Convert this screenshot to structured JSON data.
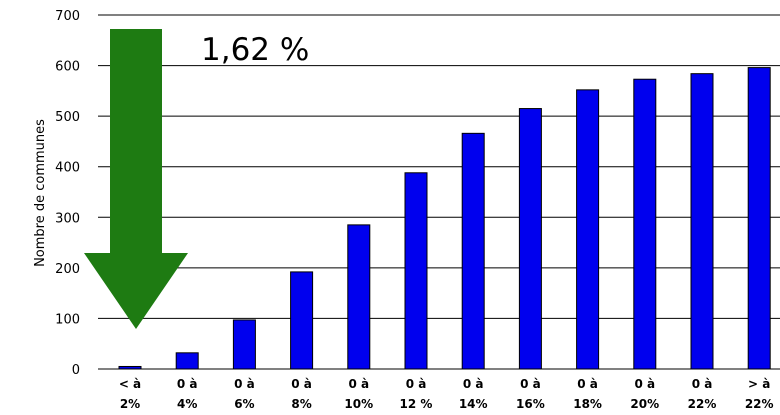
{
  "chart_data": {
    "type": "bar",
    "title": "",
    "xlabel": "",
    "ylabel": "Nombre de communes",
    "ylim": [
      0,
      700
    ],
    "yticks": [
      "0",
      "100",
      "200",
      "300",
      "400",
      "500",
      "600",
      "700"
    ],
    "grid": "horizontal",
    "legend": "none",
    "categories": [
      [
        "< à",
        "2%"
      ],
      [
        "0 à",
        "4%"
      ],
      [
        "0 à",
        "6%"
      ],
      [
        "0 à",
        "8%"
      ],
      [
        "0 à",
        "10%"
      ],
      [
        "0 à",
        "12 %"
      ],
      [
        "0 à",
        "14%"
      ],
      [
        "0 à",
        "16%"
      ],
      [
        "0 à",
        "18%"
      ],
      [
        "0 à",
        "20%"
      ],
      [
        "0 à",
        "22%"
      ],
      [
        "> à",
        "22%"
      ]
    ],
    "values": [
      5,
      32,
      97,
      192,
      285,
      388,
      466,
      515,
      552,
      573,
      584,
      596
    ],
    "bar_color": "#0000ee",
    "annotation": {
      "text": "1,62 %",
      "arrow_color": "#1e7b12",
      "arrow_direction": "down",
      "target_category_index": 0
    }
  }
}
